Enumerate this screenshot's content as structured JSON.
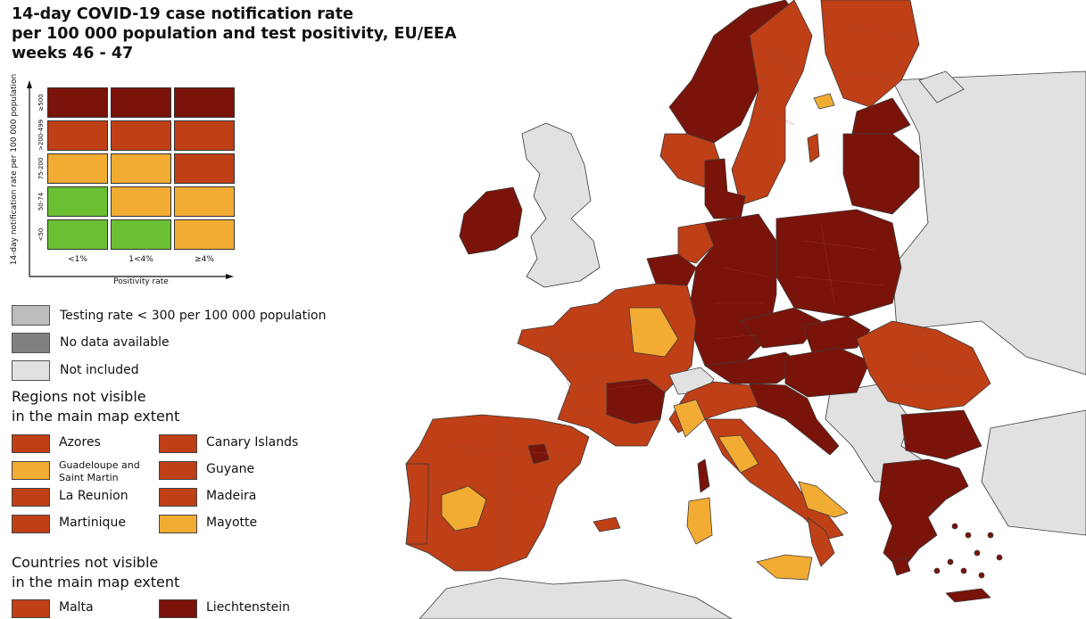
{
  "title": {
    "line1": "14-day COVID-19 case notification rate",
    "line2": "per 100 000 population and test positivity, EU/EEA",
    "line3": "weeks 46 - 47"
  },
  "matrix": {
    "y_axis_label": "14-day notification rate per 100 000 population",
    "x_axis_label": "Positivity rate",
    "rows": [
      "≥500",
      ">200-499",
      "75-200",
      "50-74",
      "<50"
    ],
    "cols": [
      "<1%",
      "1<4%",
      "≥4%"
    ],
    "cells": [
      [
        "dark-red",
        "dark-red",
        "dark-red"
      ],
      [
        "red",
        "red",
        "red"
      ],
      [
        "orange",
        "orange",
        "red"
      ],
      [
        "green",
        "orange",
        "orange"
      ],
      [
        "green",
        "green",
        "orange"
      ]
    ]
  },
  "colors": {
    "dark-red": "#7a1309",
    "red": "#bf3f17",
    "orange": "#f2ac33",
    "green": "#6abf33",
    "testing": "#bdbdbd",
    "nodata": "#808080",
    "notincluded": "#e1e1e1",
    "sea": "#ffffff",
    "border": "#3a3a3a"
  },
  "legend": {
    "testing": "Testing rate < 300 per 100 000 population",
    "nodata": "No data available",
    "notincluded": "Not included"
  },
  "regions_section": {
    "heading_line1": "Regions not visible",
    "heading_line2": "in the main map extent",
    "items": [
      {
        "label": "Azores",
        "color": "red"
      },
      {
        "label": "Canary Islands",
        "color": "red"
      },
      {
        "label": "Guadeloupe and Saint Martin",
        "color": "orange"
      },
      {
        "label": "Guyane",
        "color": "red"
      },
      {
        "label": "La Reunion",
        "color": "red"
      },
      {
        "label": "Madeira",
        "color": "red"
      },
      {
        "label": "Martinique",
        "color": "red"
      },
      {
        "label": "Mayotte",
        "color": "orange"
      }
    ]
  },
  "countries_section": {
    "heading_line1": "Countries not visible",
    "heading_line2": "in the main map extent",
    "items": [
      {
        "label": "Malta",
        "color": "red"
      },
      {
        "label": "Liechtenstein",
        "color": "dark-red"
      }
    ]
  }
}
